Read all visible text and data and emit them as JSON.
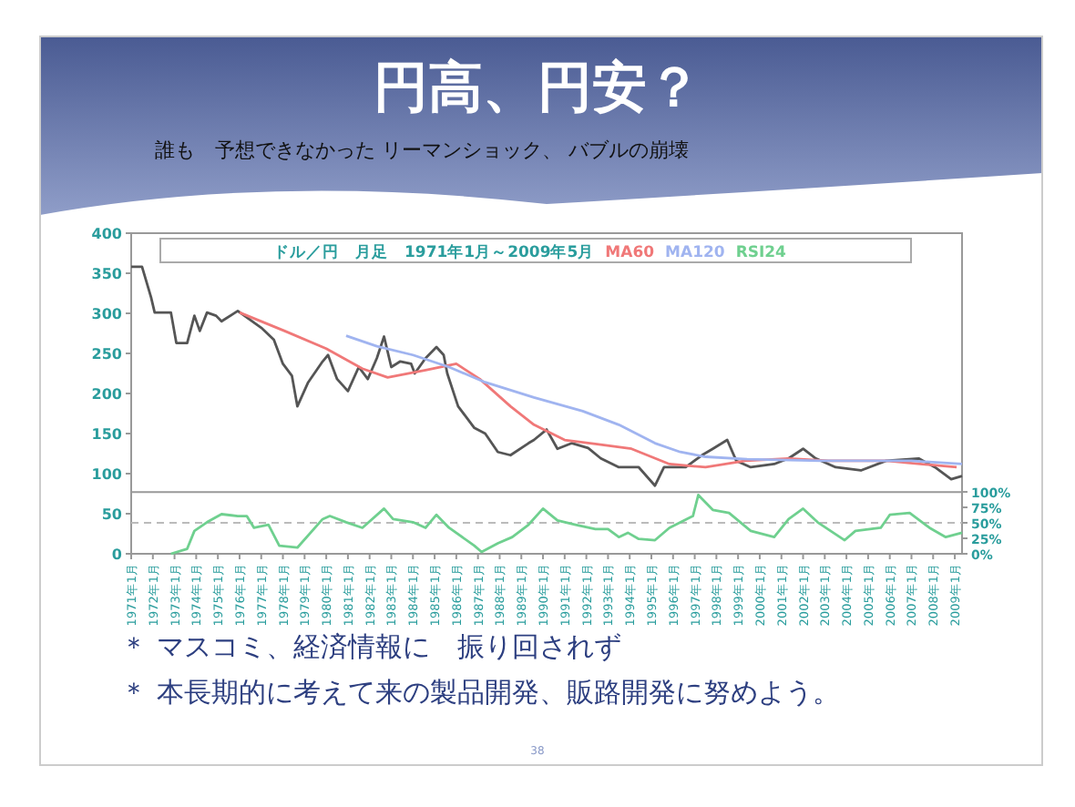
{
  "chart_data": {
    "type": "line",
    "title": "円高、円安？",
    "subtitle": "誰も　予想できなかった リーマンショック、 バブルの崩壊",
    "legend_title": "ドル／円　月足　1971年1月～2009年5月",
    "legend": "top",
    "grid": false,
    "marker": "none",
    "line_style": "solid",
    "xlim": [
      "1971-01",
      "2009-05"
    ],
    "xticks": [
      {
        "value": "1971-01",
        "label": "1971年1月"
      },
      {
        "value": "1972-01",
        "label": "1972年1月"
      },
      {
        "value": "1973-01",
        "label": "1973年1月"
      },
      {
        "value": "1974-01",
        "label": "1974年1月"
      },
      {
        "value": "1975-01",
        "label": "1975年1月"
      },
      {
        "value": "1976-01",
        "label": "1976年1月"
      },
      {
        "value": "1977-01",
        "label": "1977年1月"
      },
      {
        "value": "1978-01",
        "label": "1978年1月"
      },
      {
        "value": "1979-01",
        "label": "1979年1月"
      },
      {
        "value": "1980-01",
        "label": "1980年1月"
      },
      {
        "value": "1981-01",
        "label": "1981年1月"
      },
      {
        "value": "1982-01",
        "label": "1982年1月"
      },
      {
        "value": "1983-01",
        "label": "1983年1月"
      },
      {
        "value": "1984-01",
        "label": "1984年1月"
      },
      {
        "value": "1985-01",
        "label": "1985年1月"
      },
      {
        "value": "1986-01",
        "label": "1986年1月"
      },
      {
        "value": "1987-01",
        "label": "1987年1月"
      },
      {
        "value": "1988-01",
        "label": "1988年1月"
      },
      {
        "value": "1989-01",
        "label": "1989年1月"
      },
      {
        "value": "1990-01",
        "label": "1990年1月"
      },
      {
        "value": "1991-01",
        "label": "1991年1月"
      },
      {
        "value": "1992-01",
        "label": "1992年1月"
      },
      {
        "value": "1993-01",
        "label": "1993年1月"
      },
      {
        "value": "1994-01",
        "label": "1994年1月"
      },
      {
        "value": "1995-01",
        "label": "1995年1月"
      },
      {
        "value": "1996-01",
        "label": "1996年1月"
      },
      {
        "value": "1997-01",
        "label": "1997年1月"
      },
      {
        "value": "1998-01",
        "label": "1998年1月"
      },
      {
        "value": "1999-01",
        "label": "1999年1月"
      },
      {
        "value": "2000-01",
        "label": "2000年1月"
      },
      {
        "value": "2001-01",
        "label": "2001年1月"
      },
      {
        "value": "2002-01",
        "label": "2002年1月"
      },
      {
        "value": "2003-01",
        "label": "2003年1月"
      },
      {
        "value": "2004-01",
        "label": "2004年1月"
      },
      {
        "value": "2005-01",
        "label": "2005年1月"
      },
      {
        "value": "2006-01",
        "label": "2006年1月"
      },
      {
        "value": "2007-01",
        "label": "2007年1月"
      },
      {
        "value": "2008-01",
        "label": "2008年1月"
      },
      {
        "value": "2009-01",
        "label": "2009年1月"
      }
    ],
    "ylim": [
      0,
      400
    ],
    "yticks": [
      0,
      50,
      100,
      150,
      200,
      250,
      300,
      350,
      400
    ],
    "y2lim": [
      0,
      518
    ],
    "y2ticks": [
      {
        "value": 0,
        "label": "0%"
      },
      {
        "value": 25,
        "label": "25%"
      },
      {
        "value": 50,
        "label": "50%"
      },
      {
        "value": 75,
        "label": "75%"
      },
      {
        "value": 100,
        "label": "100%"
      }
    ],
    "ref_lines": [
      {
        "axis": "y",
        "value": 77,
        "color": "#999999",
        "line_style": "solid"
      },
      {
        "axis": "y2",
        "value": 50,
        "color": "#bbbbbb",
        "line_style": "dashed"
      }
    ],
    "annotations": [
      "＊ マスコミ、経済情報に　振り回されず",
      "＊ 本長期的に考えて来の製品開発、販路開発に努めよう。",
      "38"
    ],
    "series": [
      {
        "color": "#555555",
        "x": [
          "1971-01",
          "1971-07",
          "1971-12",
          "1972-02",
          "1972-11",
          "1973-02",
          "1973-08",
          "1973-12",
          "1974-03",
          "1974-07",
          "1974-12",
          "1975-03",
          "1975-12",
          "1977-01",
          "1977-08",
          "1978-01",
          "1978-06",
          "1978-09",
          "1979-03",
          "1979-11",
          "1980-02",
          "1980-07",
          "1981-01",
          "1981-07",
          "1981-12",
          "1982-05",
          "1982-09",
          "1983-01",
          "1983-06",
          "1983-12",
          "1984-02",
          "1984-08",
          "1985-02",
          "1985-06",
          "1985-08",
          "1986-02",
          "1986-11",
          "1987-05",
          "1987-12",
          "1988-07",
          "1989-05",
          "1989-08",
          "1990-03",
          "1990-09",
          "1991-05",
          "1992-02",
          "1992-09",
          "1993-07",
          "1994-06",
          "1995-03",
          "1995-08",
          "1996-08",
          "1997-05",
          "1997-11",
          "1998-07",
          "1998-12",
          "1999-08",
          "2000-09",
          "2001-05",
          "2002-01",
          "2002-08",
          "2003-07",
          "2004-09",
          "2005-11",
          "2007-05",
          "2008-02",
          "2008-11",
          "2009-05"
        ],
        "values": [
          358,
          358,
          320,
          301,
          301,
          263,
          263,
          297,
          278,
          301,
          297,
          290,
          303,
          282,
          267,
          237,
          222,
          184,
          214,
          240,
          248,
          218,
          203,
          233,
          218,
          244,
          271,
          233,
          240,
          237,
          225,
          244,
          258,
          248,
          225,
          184,
          157,
          150,
          127,
          123,
          138,
          142,
          155,
          131,
          138,
          132,
          119,
          108,
          108,
          85,
          108,
          108,
          123,
          131,
          142,
          116,
          108,
          112,
          119,
          131,
          119,
          108,
          104,
          116,
          119,
          108,
          93,
          97
        ]
      },
      {
        "name": "MA60",
        "color": "#f07878",
        "x": [
          "1976-01",
          "1978-02",
          "1980-01",
          "1981-09",
          "1982-11",
          "1984-08",
          "1986-01",
          "1987-02",
          "1988-07",
          "1989-08",
          "1991-01",
          "1992-06",
          "1994-02",
          "1995-11",
          "1997-07",
          "1999-05",
          "2001-05",
          "2003-03",
          "2005-11",
          "2009-02"
        ],
        "values": [
          301,
          278,
          256,
          231,
          220,
          229,
          237,
          218,
          184,
          161,
          142,
          137,
          131,
          112,
          108,
          116,
          119,
          116,
          116,
          108
        ]
      },
      {
        "name": "MA120",
        "color": "#a0b4f0",
        "x": [
          "1980-12",
          "1982-05",
          "1984-01",
          "1985-09",
          "1987-05",
          "1989-08",
          "1991-11",
          "1993-07",
          "1995-03",
          "1996-05",
          "1997-07",
          "1999-06",
          "2002-11",
          "2007-01",
          "2009-05"
        ],
        "values": [
          272,
          259,
          248,
          233,
          214,
          195,
          178,
          161,
          138,
          127,
          121,
          118,
          116,
          116,
          112
        ]
      },
      {
        "name": "RSI24",
        "color": "#6fd08f",
        "axis": "y2",
        "x": [
          "1972-11",
          "1973-08",
          "1973-12",
          "1974-07",
          "1975-03",
          "1975-12",
          "1976-05",
          "1976-09",
          "1977-05",
          "1977-11",
          "1978-09",
          "1979-11",
          "1980-03",
          "1980-12",
          "1981-09",
          "1982-09",
          "1983-02",
          "1984-01",
          "1984-08",
          "1985-02",
          "1985-09",
          "1986-11",
          "1987-03",
          "1987-12",
          "1988-08",
          "1989-05",
          "1990-01",
          "1990-09",
          "1991-07",
          "1992-06",
          "1993-01",
          "1993-07",
          "1993-12",
          "1994-06",
          "1995-03",
          "1995-11",
          "1996-12",
          "1997-03",
          "1997-11",
          "1998-08",
          "1999-08",
          "2000-09",
          "2001-05",
          "2002-01",
          "2002-09",
          "2003-12",
          "2004-06",
          "2005-08",
          "2006-01",
          "2006-12",
          "2007-11",
          "2008-08",
          "2009-05"
        ],
        "values": [
          0,
          8,
          37,
          51,
          64,
          61,
          61,
          42,
          47,
          13,
          10,
          56,
          61,
          51,
          42,
          73,
          56,
          51,
          42,
          63,
          42,
          13,
          3,
          17,
          27,
          47,
          73,
          54,
          47,
          40,
          40,
          27,
          34,
          24,
          22,
          42,
          61,
          95,
          71,
          66,
          37,
          27,
          56,
          73,
          51,
          22,
          37,
          42,
          63,
          66,
          42,
          27,
          34
        ]
      }
    ]
  }
}
